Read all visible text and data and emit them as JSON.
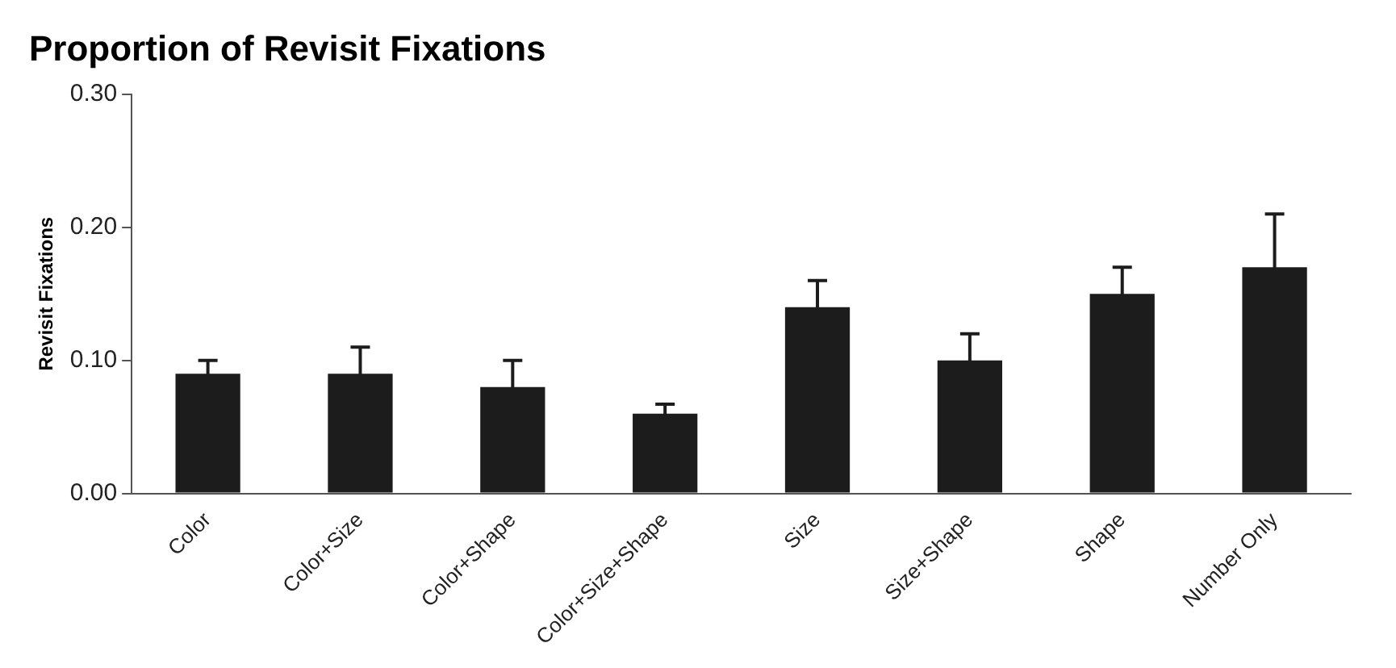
{
  "chart_data": {
    "type": "bar",
    "title": "Proportion of Revisit Fixations",
    "ylabel": "Revisit Fixations",
    "categories": [
      "Color",
      "Color+Size",
      "Color+Shape",
      "Color+Size+Shape",
      "Size",
      "Size+Shape",
      "Shape",
      "Number Only"
    ],
    "values": [
      0.09,
      0.09,
      0.08,
      0.06,
      0.14,
      0.1,
      0.15,
      0.17
    ],
    "errors": [
      0.01,
      0.02,
      0.02,
      0.007,
      0.02,
      0.02,
      0.02,
      0.04
    ],
    "color": "#1c1c1c",
    "ylim": [
      0,
      0.3
    ],
    "yticks": [
      {
        "value": 0,
        "label": "0.00"
      },
      {
        "value": 0.1,
        "label": "0.10"
      },
      {
        "value": 0.2,
        "label": "0.20"
      },
      {
        "value": 0.3,
        "label": "0.30"
      }
    ],
    "grid": false
  }
}
